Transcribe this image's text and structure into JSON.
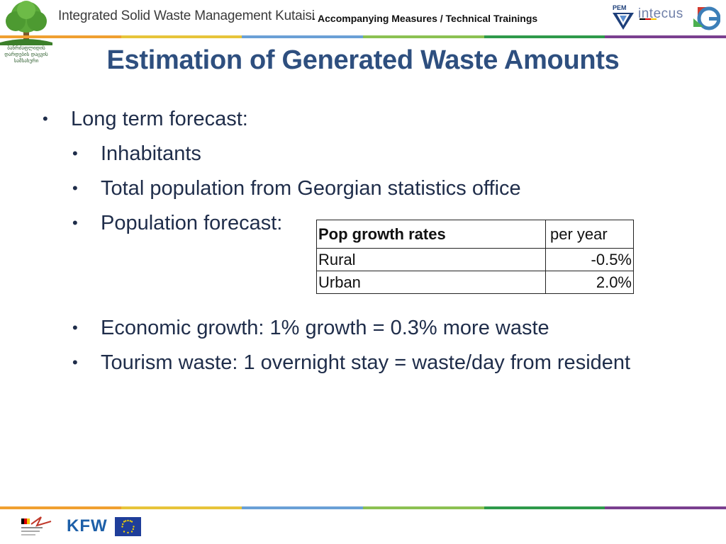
{
  "header": {
    "project_title": "Integrated Solid Waste Management Kutaisi",
    "subtitle": "- Accompanying Measures / Technical Trainings",
    "left_logo_caption": "ბანრძაფლიდის დარდების დაცვის სამსახური",
    "partner_logos": [
      "PEM Consult",
      "intecus",
      "Georgia G"
    ]
  },
  "colors": {
    "title": "#2e4f7f",
    "bar": [
      "#f0a030",
      "#e7c43a",
      "#6aa0d6",
      "#4aa0c8",
      "#8cc152",
      "#2e9a4a",
      "#1b6e3a",
      "#7a3f8f"
    ]
  },
  "slide": {
    "title": "Estimation of Generated Waste Amounts",
    "bullets": [
      {
        "text": "Long term forecast:"
      },
      {
        "text": "Inhabitants"
      },
      {
        "text": "Total population from Georgian statistics office"
      },
      {
        "text": "Population forecast:"
      },
      {
        "text": "Economic growth: 1% growth = 0.3% more waste"
      },
      {
        "text": "Tourism waste: 1 overnight stay = waste/day from resident"
      }
    ],
    "bullet_glyph": "•"
  },
  "table": {
    "header": [
      "Pop growth rates",
      "per year"
    ],
    "rows": [
      [
        "Rural",
        "-0.5%"
      ],
      [
        "Urban",
        "2.0%"
      ]
    ]
  },
  "footer": {
    "kfw": "KFW",
    "logos": [
      "German cooperation",
      "KFW",
      "EU flag"
    ]
  }
}
